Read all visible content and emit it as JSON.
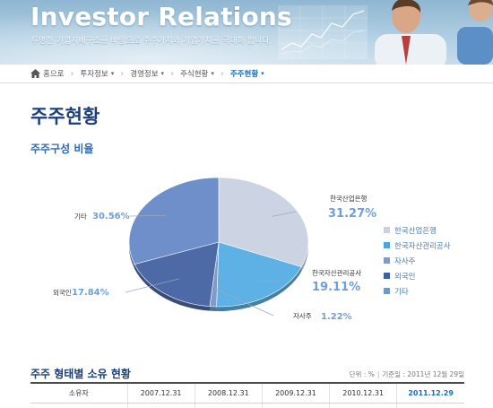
{
  "banner": {
    "title": "Investor Relations",
    "subtitle": "투명한 기업지배구조를 바탕으로 주주가치와 기업가치를 극대화 합니다"
  },
  "breadcrumb": {
    "home": "홈으로",
    "items": [
      {
        "label": "투자정보"
      },
      {
        "label": "경영정보"
      },
      {
        "label": "주식현황"
      },
      {
        "label": "주주현황"
      }
    ]
  },
  "page": {
    "title": "주주현황",
    "section_title": "주주구성 비율"
  },
  "chart_data": {
    "type": "pie",
    "title": "",
    "slices": [
      {
        "name": "한국산업은행",
        "value": 31.27,
        "label": "31.27%",
        "color": "#ccd3e2"
      },
      {
        "name": "한국자산관리공사",
        "value": 19.11,
        "label": "19.11%",
        "color": "#5eb1e4"
      },
      {
        "name": "자사주",
        "value": 1.22,
        "label": "1.22%",
        "color": "#7f9bc8"
      },
      {
        "name": "외국인",
        "value": 17.84,
        "label": "17.84%",
        "color": "#4e6aa6"
      },
      {
        "name": "기타",
        "value": 30.56,
        "label": "30.56%",
        "color": "#6f8fcb"
      }
    ],
    "legend": {
      "position": "right",
      "items": [
        {
          "label": "한국산업은행",
          "color": "#c9d0e2"
        },
        {
          "label": "한국자산관리공사",
          "color": "#4aa6de"
        },
        {
          "label": "자사주",
          "color": "#7d9ccd"
        },
        {
          "label": "외국인",
          "color": "#3e5fa3"
        },
        {
          "label": "기타",
          "color": "#6a9ad6"
        }
      ]
    }
  },
  "ownership": {
    "title": "주주 형태별 소유 현황",
    "unit": "단위 : %",
    "base_date": "기준일 : 2011년 12월 29일",
    "columns": [
      "소유자",
      "2007.12.31",
      "2008.12.31",
      "2009.12.31",
      "2010.12.31",
      "2011.12.29"
    ]
  },
  "colors": {
    "title_navy": "#1a3f7a",
    "accent_blue": "#2c6ab3",
    "label_value_blue": "#6f9fd8"
  }
}
